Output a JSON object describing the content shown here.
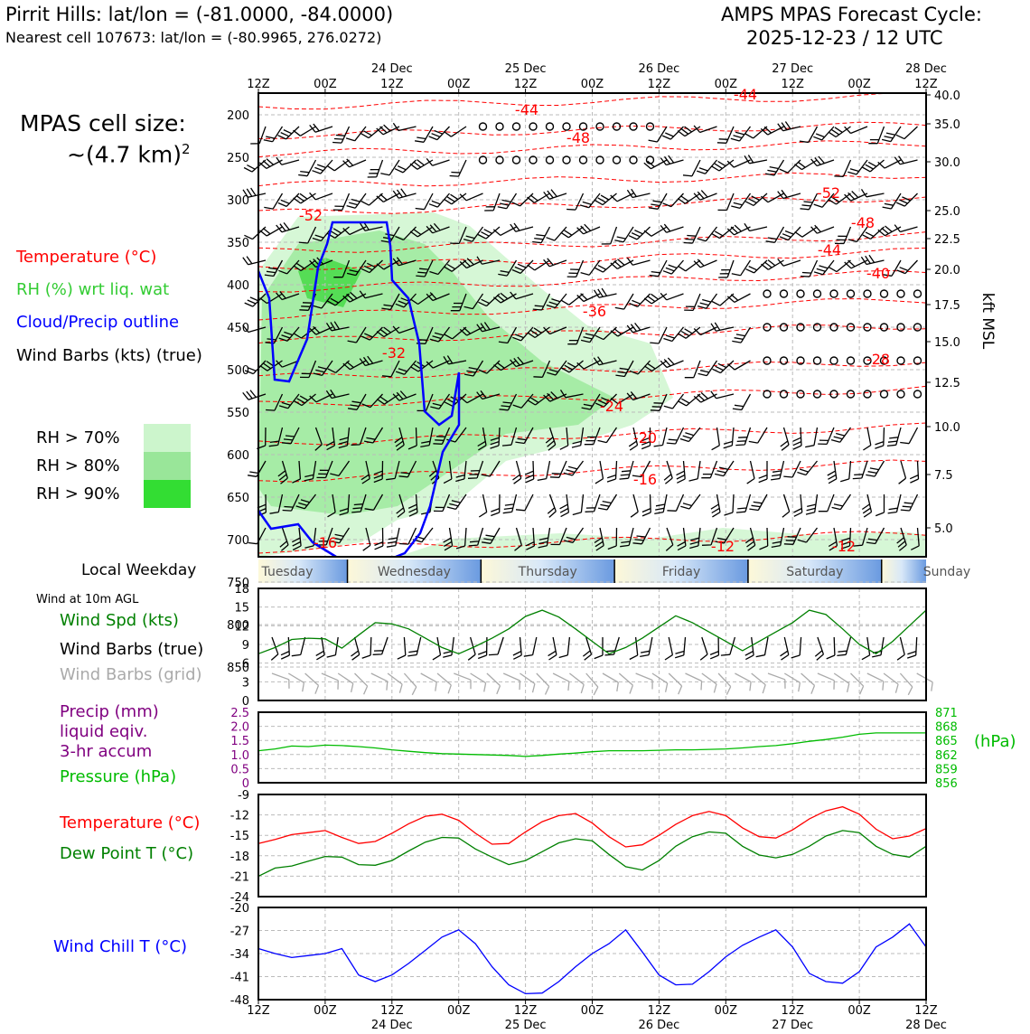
{
  "header": {
    "location": "Pirrit Hills: lat/lon = (-81.0000, -84.0000)",
    "nearest_cell": "Nearest cell 107673: lat/lon = (-80.9965, 276.0272)",
    "cycle_line1": "AMPS MPAS Forecast Cycle:",
    "cycle_line2": "2025-12-23 / 12 UTC"
  },
  "left_labels": {
    "cell_size_line1": "MPAS cell size:",
    "cell_size_line2": "~(4.7 km)",
    "cell_size_sup": "2",
    "temperature": "Temperature (°C)",
    "rh": "RH (%) wrt liq. wat",
    "cloud": "Cloud/Precip outline",
    "wind_barbs": "Wind Barbs (kts) (true)",
    "rh_legend": [
      {
        "label": "RH > 70%",
        "color": "#ccf5cc"
      },
      {
        "label": "RH > 80%",
        "color": "#99e699"
      },
      {
        "label": "RH > 90%",
        "color": "#33dd33"
      }
    ],
    "local_weekday": "Local Weekday",
    "wind_10m": "Wind at 10m AGL",
    "wind_spd": "Wind Spd (kts)",
    "wind_barbs_true": "Wind Barbs (true)",
    "wind_barbs_grid": "Wind Barbs (grid)",
    "precip_line1": "Precip (mm)",
    "precip_line2": "liquid eqiv.",
    "precip_line3": "3-hr accum",
    "pressure": "Pressure (hPa)",
    "temperature2": "Temperature (°C)",
    "dewpoint": "Dew Point T (°C)",
    "windchill": "Wind Chill T (°C)"
  },
  "time_axis": {
    "top_hours": [
      "12Z",
      "00Z",
      "12Z",
      "00Z",
      "12Z",
      "00Z",
      "12Z",
      "00Z",
      "12Z",
      "00Z",
      "12Z"
    ],
    "dates": [
      "24 Dec",
      "25 Dec",
      "26 Dec",
      "27 Dec",
      "28 Dec"
    ]
  },
  "weekdays": [
    "Tuesday",
    "Wednesday",
    "Thursday",
    "Friday",
    "Saturday",
    "Sunday"
  ],
  "colors": {
    "temp": "#ff0000",
    "dew": "#008000",
    "rh_text": "#33cc33",
    "cloud": "#0000ff",
    "precip": "#800080",
    "pressure": "#00bb00",
    "windchill": "#0000ff",
    "grid_barb": "#aaaaaa"
  },
  "chart_data": [
    {
      "type": "time-height cross section",
      "y_left_label": "pressure (hPa)",
      "y_left_ticks": [
        200,
        250,
        300,
        350,
        400,
        450,
        500,
        550,
        600,
        650,
        700,
        750,
        800,
        850
      ],
      "y_right_label": "kft MSL",
      "y_right_ticks": [
        "40.0",
        "35.0",
        "30.0",
        "25.0",
        "22.5",
        "20.0",
        "17.5",
        "15.0",
        "12.5",
        "10.0",
        "7.5",
        "5.0"
      ],
      "isotherm_labels": [
        "-44",
        "-44",
        "-48",
        "-52",
        "-52",
        "-48",
        "-44",
        "-40",
        "-36",
        "-32",
        "-28",
        "-24",
        "-20",
        "-16",
        "-16",
        "-12",
        "-12"
      ]
    },
    {
      "type": "line",
      "title": "Wind Spd (kts)",
      "ylim": [
        0,
        18
      ],
      "yticks": [
        "0",
        "3",
        "6",
        "9",
        "12",
        "15",
        "18"
      ],
      "x_hours": [
        0,
        3,
        6,
        9,
        12,
        15,
        18,
        21,
        24,
        27,
        30,
        33,
        36,
        39,
        42,
        45,
        48,
        51,
        54,
        57,
        60,
        63,
        66,
        69,
        72,
        75,
        78,
        81,
        84,
        87,
        90,
        93,
        96,
        99,
        102,
        105,
        108,
        111,
        114,
        117,
        120
      ],
      "series": [
        {
          "name": "Wind Spd (kts)",
          "values": [
            7.5,
            8.5,
            9.8,
            10,
            9.9,
            8.4,
            10.5,
            12.5,
            12.3,
            11.5,
            10,
            8.5,
            7.5,
            8.7,
            10,
            11.5,
            13.5,
            14.5,
            13.4,
            11.5,
            9.5,
            7.5,
            8.5,
            10,
            11.8,
            13.6,
            12.5,
            11,
            9.5,
            8,
            9.5,
            11,
            12.5,
            14.5,
            13.8,
            11.5,
            9,
            7.5,
            9.5,
            12,
            14.5
          ]
        }
      ]
    },
    {
      "type": "line",
      "title": "Precip (mm) / Pressure (hPa)",
      "ylim_left": [
        0,
        2.5
      ],
      "yticks_left": [
        "0",
        "0.5",
        "1.0",
        "1.5",
        "2.0",
        "2.5"
      ],
      "ylim_right": [
        856,
        871
      ],
      "yticks_right": [
        "856",
        "859",
        "862",
        "865",
        "868",
        "871"
      ],
      "right_unit": "(hPa)",
      "series": [
        {
          "name": "Pressure (hPa)",
          "values": [
            862.8,
            863.2,
            863.8,
            863.7,
            864.0,
            863.9,
            863.7,
            863.4,
            863.0,
            862.7,
            862.4,
            862.2,
            862.1,
            862.0,
            861.9,
            861.8,
            861.6,
            861.8,
            862.1,
            862.3,
            862.6,
            862.8,
            862.8,
            862.8,
            862.9,
            863.0,
            863.0,
            863.1,
            863.2,
            863.4,
            863.7,
            863.9,
            864.3,
            864.8,
            865.2,
            865.7,
            866.3,
            866.6,
            866.6,
            866.6,
            866.6
          ]
        }
      ]
    },
    {
      "type": "line",
      "title": "Temperature / Dew Point",
      "ylim": [
        -24,
        -9
      ],
      "yticks": [
        "-24",
        "-21",
        "-18",
        "-15",
        "-12",
        "-9"
      ],
      "series": [
        {
          "name": "Temperature (°C)",
          "values": [
            -16.2,
            -15.6,
            -14.9,
            -14.6,
            -14.3,
            -15.3,
            -16.2,
            -15.9,
            -14.7,
            -13.3,
            -12.2,
            -11.9,
            -12.8,
            -14.7,
            -16.3,
            -16.2,
            -14.5,
            -13,
            -12.1,
            -11.8,
            -13.2,
            -15.2,
            -16.7,
            -16.4,
            -15,
            -13.4,
            -12.1,
            -11.5,
            -12.1,
            -13.9,
            -15.2,
            -15.4,
            -14.2,
            -12.6,
            -11.4,
            -10.8,
            -11.9,
            -14.1,
            -15.5,
            -15.1,
            -14
          ]
        },
        {
          "name": "Dew Point T (°C)",
          "values": [
            -21,
            -19.8,
            -19.5,
            -18.8,
            -18.1,
            -18.2,
            -19.3,
            -19.4,
            -18.7,
            -17.3,
            -16,
            -15.3,
            -15.4,
            -17,
            -18.2,
            -19.3,
            -18.7,
            -17.4,
            -16.1,
            -15.5,
            -15.8,
            -17.8,
            -19.6,
            -20.1,
            -18.7,
            -16.6,
            -15.2,
            -14.5,
            -14.7,
            -16.6,
            -17.9,
            -18.3,
            -17.8,
            -16.6,
            -15.1,
            -14.3,
            -14.6,
            -16.6,
            -17.8,
            -18.2,
            -16.6
          ]
        }
      ]
    },
    {
      "type": "line",
      "title": "Wind Chill T (°C)",
      "ylim": [
        -48,
        -20
      ],
      "yticks": [
        "-48",
        "-41",
        "-34",
        "-27",
        "-20"
      ],
      "series": [
        {
          "name": "Wind Chill T (°C)",
          "values": [
            -32.5,
            -34,
            -35.2,
            -34.6,
            -34,
            -32.5,
            -40.5,
            -42.5,
            -40.5,
            -37,
            -33,
            -29,
            -26.8,
            -31,
            -38,
            -43.5,
            -46.2,
            -46,
            -42.5,
            -38,
            -34,
            -31,
            -26.8,
            -33.5,
            -40.5,
            -43.5,
            -43.3,
            -39.5,
            -35,
            -31.5,
            -29,
            -26.8,
            -32,
            -40,
            -42.5,
            -43,
            -39.5,
            -32,
            -29,
            -25,
            -32
          ]
        }
      ]
    }
  ]
}
